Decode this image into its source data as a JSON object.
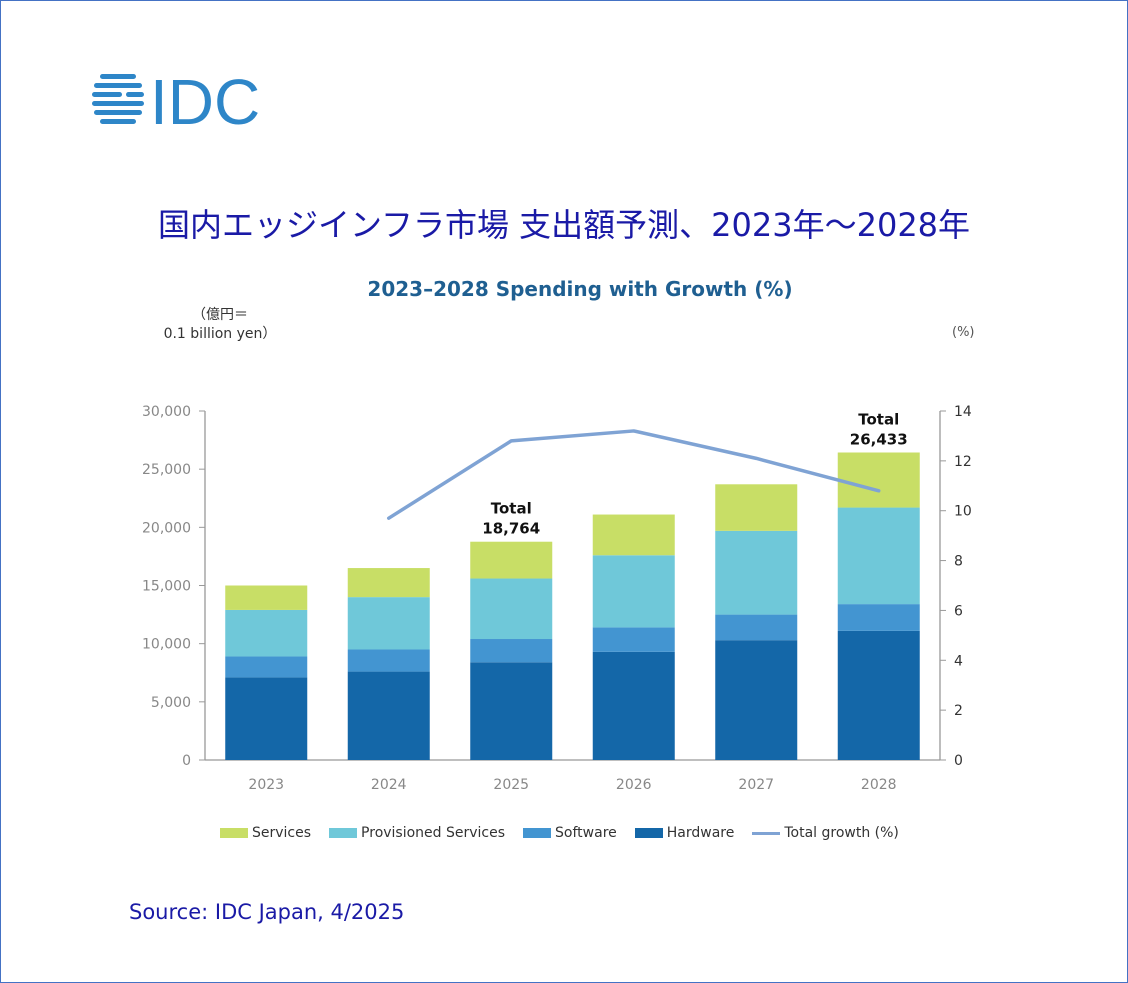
{
  "brand": {
    "logo_text": "IDC",
    "logo_color": "#2e86c8"
  },
  "title_jp": "国内エッジインフラ市場 支出額予測、2023年～2028年",
  "source": "Source: IDC Japan, 4/2025",
  "chart_data": {
    "type": "bar",
    "stacked": true,
    "title": "2023–2028 Spending with Growth (%)",
    "ylabel_line1": "（億円＝",
    "ylabel_line2": "0.1 billion yen）",
    "y2label": "(%)",
    "categories": [
      "2023",
      "2024",
      "2025",
      "2026",
      "2027",
      "2028"
    ],
    "ylim": [
      0,
      30000
    ],
    "yticks": [
      0,
      5000,
      10000,
      15000,
      20000,
      25000,
      30000
    ],
    "ytick_labels": [
      "0",
      "5,000",
      "10,000",
      "15,000",
      "20,000",
      "25,000",
      "30,000"
    ],
    "y2lim": [
      0,
      14
    ],
    "y2ticks": [
      0,
      2,
      4,
      6,
      8,
      10,
      12,
      14
    ],
    "series": [
      {
        "name": "Hardware",
        "color": "#1467a8",
        "values": [
          7100,
          7600,
          8400,
          9300,
          10300,
          11100
        ]
      },
      {
        "name": "Software",
        "color": "#4395d1",
        "values": [
          1800,
          1900,
          2000,
          2100,
          2200,
          2300
        ]
      },
      {
        "name": "Provisioned Services",
        "color": "#6fc8d9",
        "values": [
          4000,
          4500,
          5200,
          6200,
          7200,
          8300
        ]
      },
      {
        "name": "Services",
        "color": "#c8de66",
        "values": [
          2100,
          2500,
          3164,
          3500,
          4000,
          4733
        ]
      }
    ],
    "line_series": {
      "name": "Total growth (%)",
      "color": "#7fa3d4",
      "axis": "right",
      "values": [
        null,
        9.7,
        12.8,
        13.2,
        12.1,
        10.8
      ]
    },
    "annotations": [
      {
        "category": "2025",
        "line1": "Total",
        "line2": "18,764"
      },
      {
        "category": "2028",
        "line1": "Total",
        "line2": "26,433"
      }
    ],
    "legend": {
      "position": "bottom",
      "order": [
        "Services",
        "Provisioned Services",
        "Software",
        "Hardware",
        "Total growth (%)"
      ]
    },
    "grid": false
  }
}
